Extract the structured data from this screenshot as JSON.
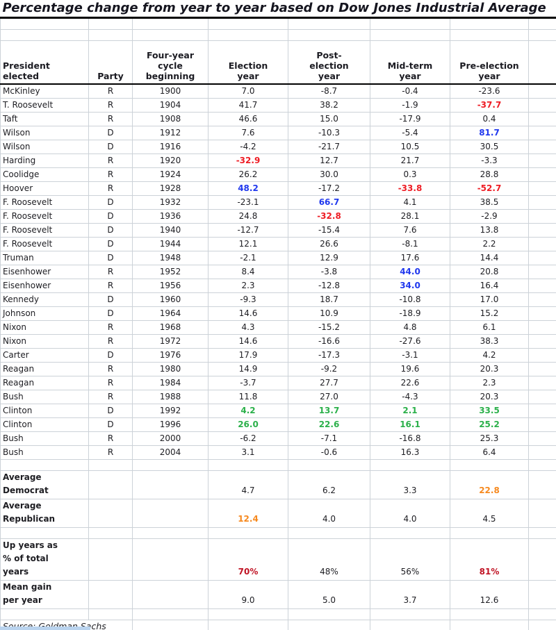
{
  "colors": {
    "red": "#ee1c24",
    "blue": "#2038ee",
    "green": "#2bb04a",
    "orange": "#f6891f",
    "dark_red": "#c01324",
    "grid_line": "#ccd2d8",
    "text": "#1d1d22",
    "heavy_border": "#000000",
    "selection": "#b9d3ee"
  },
  "chart_data": {
    "type": "table",
    "title": "Percentage change from year to year based on Dow Jones Industrial Average",
    "columns": [
      "President\nelected",
      "Party",
      "Four-year\ncycle\nbeginning",
      "Election\nyear",
      "Post-\nelection\nyear",
      "Mid-term\nyear",
      "Pre-election\nyear"
    ],
    "rows": [
      {
        "president": "McKinley",
        "party": "R",
        "year": "1900",
        "values": [
          [
            "7.0",
            ""
          ],
          [
            "-8.7",
            ""
          ],
          [
            "-0.4",
            ""
          ],
          [
            "-23.6",
            ""
          ]
        ]
      },
      {
        "president": "T. Roosevelt",
        "party": "R",
        "year": "1904",
        "values": [
          [
            "41.7",
            ""
          ],
          [
            "38.2",
            ""
          ],
          [
            "-1.9",
            ""
          ],
          [
            "-37.7",
            "red"
          ]
        ]
      },
      {
        "president": "Taft",
        "party": "R",
        "year": "1908",
        "values": [
          [
            "46.6",
            ""
          ],
          [
            "15.0",
            ""
          ],
          [
            "-17.9",
            ""
          ],
          [
            "0.4",
            ""
          ]
        ]
      },
      {
        "president": "Wilson",
        "party": "D",
        "year": "1912",
        "values": [
          [
            "7.6",
            ""
          ],
          [
            "-10.3",
            ""
          ],
          [
            "-5.4",
            ""
          ],
          [
            "81.7",
            "blue"
          ]
        ]
      },
      {
        "president": "Wilson",
        "party": "D",
        "year": "1916",
        "values": [
          [
            "-4.2",
            ""
          ],
          [
            "-21.7",
            ""
          ],
          [
            "10.5",
            ""
          ],
          [
            "30.5",
            ""
          ]
        ]
      },
      {
        "president": "Harding",
        "party": "R",
        "year": "1920",
        "values": [
          [
            "-32.9",
            "red"
          ],
          [
            "12.7",
            ""
          ],
          [
            "21.7",
            ""
          ],
          [
            "-3.3",
            ""
          ]
        ]
      },
      {
        "president": "Coolidge",
        "party": "R",
        "year": "1924",
        "values": [
          [
            "26.2",
            ""
          ],
          [
            "30.0",
            ""
          ],
          [
            "0.3",
            ""
          ],
          [
            "28.8",
            ""
          ]
        ]
      },
      {
        "president": "Hoover",
        "party": "R",
        "year": "1928",
        "values": [
          [
            "48.2",
            "blue"
          ],
          [
            "-17.2",
            ""
          ],
          [
            "-33.8",
            "red"
          ],
          [
            "-52.7",
            "red"
          ]
        ]
      },
      {
        "president": "F. Roosevelt",
        "party": "D",
        "year": "1932",
        "values": [
          [
            "-23.1",
            ""
          ],
          [
            "66.7",
            "blue"
          ],
          [
            "4.1",
            ""
          ],
          [
            "38.5",
            ""
          ]
        ]
      },
      {
        "president": "F. Roosevelt",
        "party": "D",
        "year": "1936",
        "values": [
          [
            "24.8",
            ""
          ],
          [
            "-32.8",
            "red"
          ],
          [
            "28.1",
            ""
          ],
          [
            "-2.9",
            ""
          ]
        ]
      },
      {
        "president": "F. Roosevelt",
        "party": "D",
        "year": "1940",
        "values": [
          [
            "-12.7",
            ""
          ],
          [
            "-15.4",
            ""
          ],
          [
            "7.6",
            ""
          ],
          [
            "13.8",
            ""
          ]
        ]
      },
      {
        "president": "F. Roosevelt",
        "party": "D",
        "year": "1944",
        "values": [
          [
            "12.1",
            ""
          ],
          [
            "26.6",
            ""
          ],
          [
            "-8.1",
            ""
          ],
          [
            "2.2",
            ""
          ]
        ]
      },
      {
        "president": "Truman",
        "party": "D",
        "year": "1948",
        "values": [
          [
            "-2.1",
            ""
          ],
          [
            "12.9",
            ""
          ],
          [
            "17.6",
            ""
          ],
          [
            "14.4",
            ""
          ]
        ]
      },
      {
        "president": "Eisenhower",
        "party": "R",
        "year": "1952",
        "values": [
          [
            "8.4",
            ""
          ],
          [
            "-3.8",
            ""
          ],
          [
            "44.0",
            "blue"
          ],
          [
            "20.8",
            ""
          ]
        ]
      },
      {
        "president": "Eisenhower",
        "party": "R",
        "year": "1956",
        "values": [
          [
            "2.3",
            ""
          ],
          [
            "-12.8",
            ""
          ],
          [
            "34.0",
            "blue"
          ],
          [
            "16.4",
            ""
          ]
        ]
      },
      {
        "president": "Kennedy",
        "party": "D",
        "year": "1960",
        "values": [
          [
            "-9.3",
            ""
          ],
          [
            "18.7",
            ""
          ],
          [
            "-10.8",
            ""
          ],
          [
            "17.0",
            ""
          ]
        ]
      },
      {
        "president": "Johnson",
        "party": "D",
        "year": "1964",
        "values": [
          [
            "14.6",
            ""
          ],
          [
            "10.9",
            ""
          ],
          [
            "-18.9",
            ""
          ],
          [
            "15.2",
            ""
          ]
        ]
      },
      {
        "president": "Nixon",
        "party": "R",
        "year": "1968",
        "values": [
          [
            "4.3",
            ""
          ],
          [
            "-15.2",
            ""
          ],
          [
            "4.8",
            ""
          ],
          [
            "6.1",
            ""
          ]
        ]
      },
      {
        "president": "Nixon",
        "party": "R",
        "year": "1972",
        "values": [
          [
            "14.6",
            ""
          ],
          [
            "-16.6",
            ""
          ],
          [
            "-27.6",
            ""
          ],
          [
            "38.3",
            ""
          ]
        ]
      },
      {
        "president": "Carter",
        "party": "D",
        "year": "1976",
        "values": [
          [
            "17.9",
            ""
          ],
          [
            "-17.3",
            ""
          ],
          [
            "-3.1",
            ""
          ],
          [
            "4.2",
            ""
          ]
        ]
      },
      {
        "president": "Reagan",
        "party": "R",
        "year": "1980",
        "values": [
          [
            "14.9",
            ""
          ],
          [
            "-9.2",
            ""
          ],
          [
            "19.6",
            ""
          ],
          [
            "20.3",
            ""
          ]
        ]
      },
      {
        "president": "Reagan",
        "party": "R",
        "year": "1984",
        "values": [
          [
            "-3.7",
            ""
          ],
          [
            "27.7",
            ""
          ],
          [
            "22.6",
            ""
          ],
          [
            "2.3",
            ""
          ]
        ]
      },
      {
        "president": "Bush",
        "party": "R",
        "year": "1988",
        "values": [
          [
            "11.8",
            ""
          ],
          [
            "27.0",
            ""
          ],
          [
            "-4.3",
            ""
          ],
          [
            "20.3",
            ""
          ]
        ]
      },
      {
        "president": "Clinton",
        "party": "D",
        "year": "1992",
        "values": [
          [
            "4.2",
            "green"
          ],
          [
            "13.7",
            "green"
          ],
          [
            "2.1",
            "green"
          ],
          [
            "33.5",
            "green"
          ]
        ]
      },
      {
        "president": "Clinton",
        "party": "D",
        "year": "1996",
        "values": [
          [
            "26.0",
            "green"
          ],
          [
            "22.6",
            "green"
          ],
          [
            "16.1",
            "green"
          ],
          [
            "25.2",
            "green"
          ]
        ]
      },
      {
        "president": "Bush",
        "party": "R",
        "year": "2000",
        "values": [
          [
            "-6.2",
            ""
          ],
          [
            "-7.1",
            ""
          ],
          [
            "-16.8",
            ""
          ],
          [
            "25.3",
            ""
          ]
        ]
      },
      {
        "president": "Bush",
        "party": "R",
        "year": "2004",
        "values": [
          [
            "3.1",
            ""
          ],
          [
            "-0.6",
            ""
          ],
          [
            "16.3",
            ""
          ],
          [
            "6.4",
            ""
          ]
        ]
      }
    ],
    "summary": [
      {
        "label": "Average\nDemocrat",
        "values": [
          [
            "4.7",
            ""
          ],
          [
            "6.2",
            ""
          ],
          [
            "3.3",
            ""
          ],
          [
            "22.8",
            "orange"
          ]
        ]
      },
      {
        "label": "Average\nRepublican",
        "values": [
          [
            "12.4",
            "orange"
          ],
          [
            "4.0",
            ""
          ],
          [
            "4.0",
            ""
          ],
          [
            "4.5",
            ""
          ]
        ]
      },
      {
        "label": "Up years as\n% of total\nyears",
        "values": [
          [
            "70%",
            "darkred"
          ],
          [
            "48%",
            ""
          ],
          [
            "56%",
            ""
          ],
          [
            "81%",
            "darkred"
          ]
        ]
      },
      {
        "label": "Mean gain\nper year",
        "values": [
          [
            "9.0",
            ""
          ],
          [
            "5.0",
            ""
          ],
          [
            "3.7",
            ""
          ],
          [
            "12.6",
            ""
          ]
        ]
      }
    ],
    "source": "Source: Goldman Sachs"
  }
}
